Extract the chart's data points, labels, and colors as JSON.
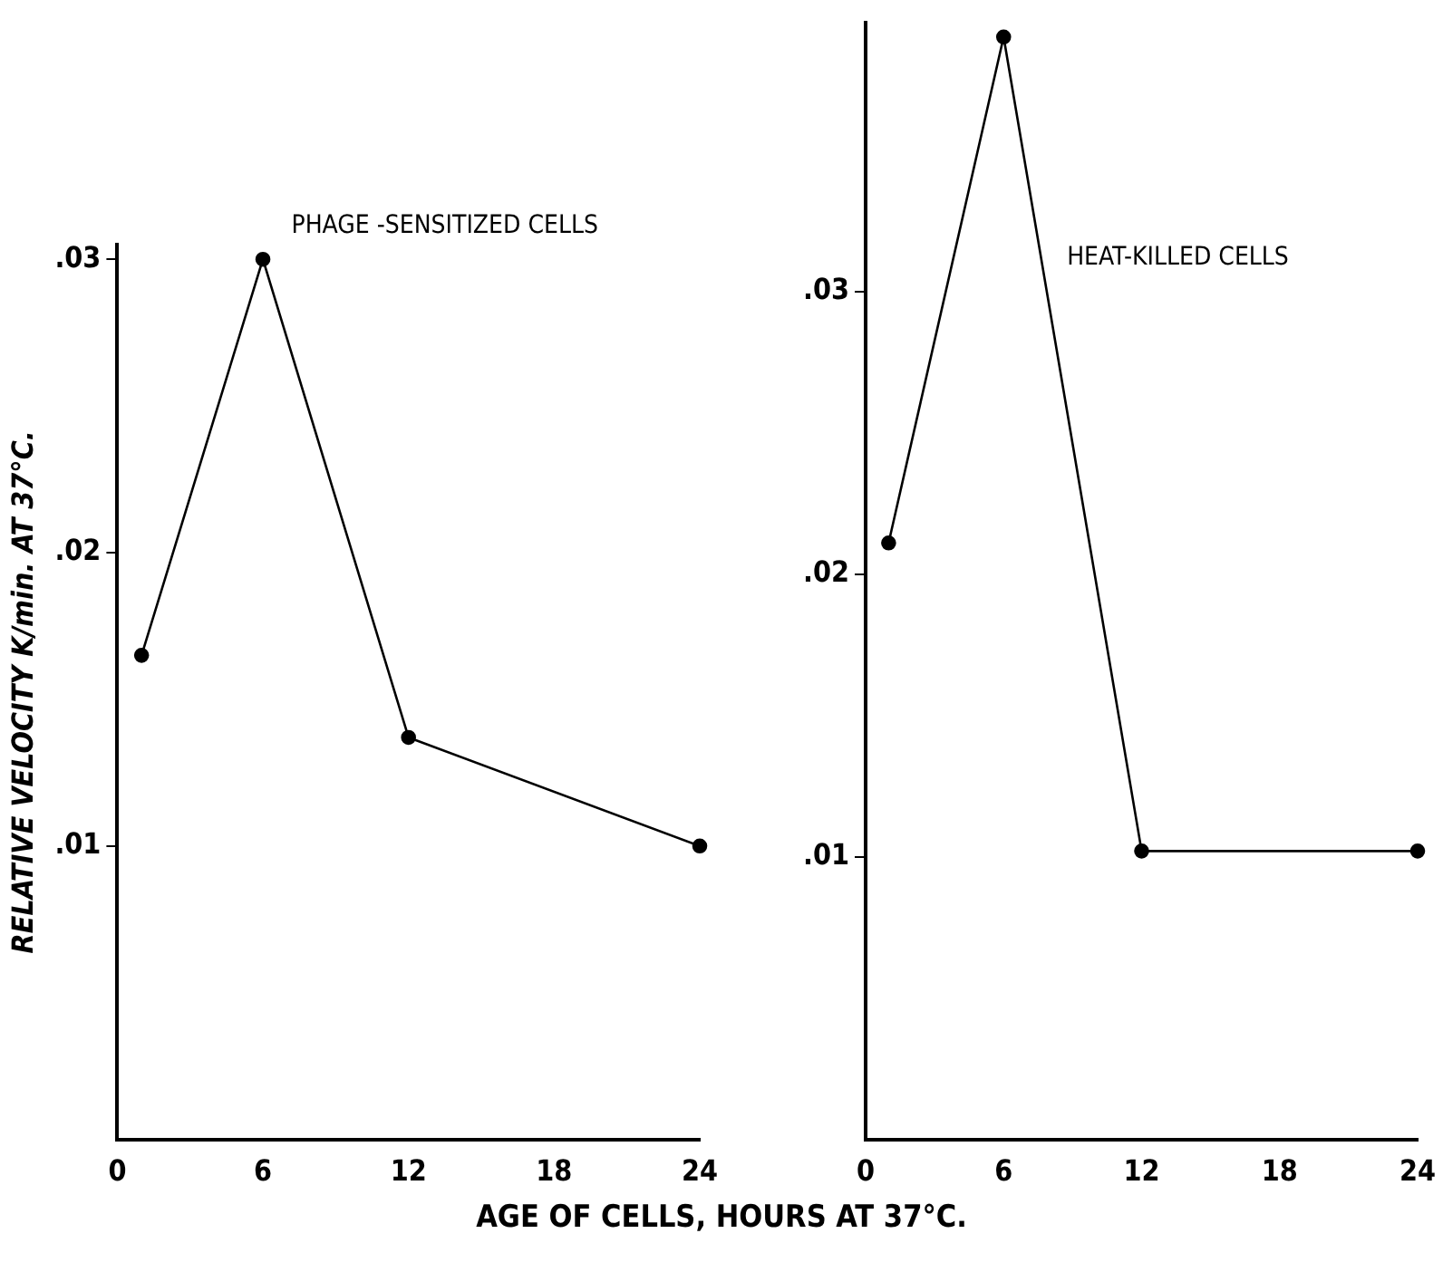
{
  "chart_data": [
    {
      "type": "line",
      "title": "PHAGE -SENSITIZED CELLS",
      "xlabel": "AGE OF CELLS, HOURS AT 37°C.",
      "ylabel": "RELATIVE VELOCITY K/min. AT 37°C.",
      "x": [
        1,
        6,
        12,
        24
      ],
      "series": [
        {
          "color": "#000000",
          "values": [
            0.0165,
            0.03,
            0.0137,
            0.01
          ]
        }
      ],
      "xlim": [
        0,
        24
      ],
      "xticks": [
        0,
        6,
        12,
        18,
        24
      ],
      "ylim": [
        0,
        0.0305
      ],
      "yticks": [
        {
          "value": 0.01,
          "label": ".01"
        },
        {
          "value": 0.02,
          "label": ".02"
        },
        {
          "value": 0.03,
          "label": ".03"
        }
      ],
      "grid": false,
      "legend": false,
      "marker": "circle",
      "line_style": "solid"
    },
    {
      "type": "line",
      "title": "HEAT-KILLED CELLS",
      "x": [
        1,
        6,
        12,
        24
      ],
      "series": [
        {
          "color": "#000000",
          "values": [
            0.0211,
            0.039,
            0.0102,
            0.0102
          ]
        }
      ],
      "xlim": [
        0,
        24
      ],
      "xticks": [
        0,
        6,
        12,
        18,
        24
      ],
      "ylim": [
        0,
        0.0395
      ],
      "yticks": [
        {
          "value": 0.01,
          "label": ".01"
        },
        {
          "value": 0.02,
          "label": ".02"
        },
        {
          "value": 0.03,
          "label": ".03"
        }
      ],
      "grid": false,
      "legend": false,
      "marker": "circle",
      "line_style": "solid"
    }
  ]
}
